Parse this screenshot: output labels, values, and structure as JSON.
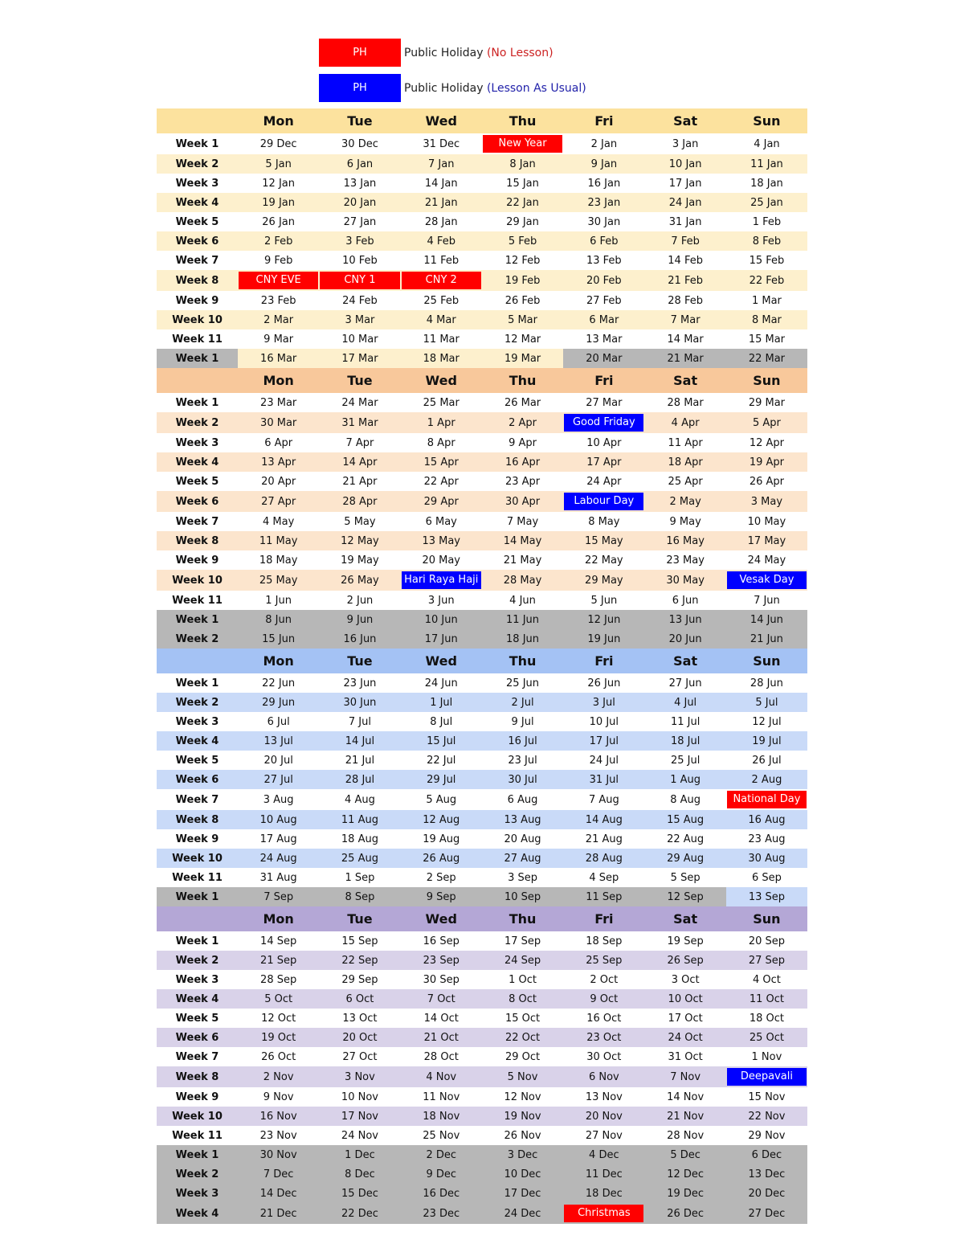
{
  "legend": [
    {
      "box_label": "PH",
      "box_color": "#ff0000",
      "text": "Public Holiday",
      "note": "(No Lesson)",
      "note_color": "#cc2222"
    },
    {
      "box_label": "PH",
      "box_color": "#0000ff",
      "text": "Public Holiday",
      "note": "(Lesson As Usual)",
      "note_color": "#2222aa"
    }
  ],
  "days": [
    "Mon",
    "Tue",
    "Wed",
    "Thu",
    "Fri",
    "Sat",
    "Sun"
  ],
  "colors": {
    "grey": "#b7b7b7",
    "holiday_red": "#ff0000",
    "holiday_blue": "#0000ff"
  },
  "terms": [
    {
      "header_color": "#fce29e",
      "alt_color": "#fdf0cd",
      "rows": [
        {
          "label": "Week 1",
          "cells": [
            "29 Dec",
            "30 Dec",
            "31 Dec",
            {
              "text": "New Year",
              "type": "red"
            },
            "2 Jan",
            "3 Jan",
            "4 Jan"
          ]
        },
        {
          "label": "Week 2",
          "cells": [
            "5 Jan",
            "6 Jan",
            "7 Jan",
            "8 Jan",
            "9 Jan",
            "10 Jan",
            "11 Jan"
          ]
        },
        {
          "label": "Week 3",
          "cells": [
            "12 Jan",
            "13 Jan",
            "14 Jan",
            "15 Jan",
            "16 Jan",
            "17 Jan",
            "18 Jan"
          ]
        },
        {
          "label": "Week 4",
          "cells": [
            "19 Jan",
            "20 Jan",
            "21 Jan",
            "22 Jan",
            "23 Jan",
            "24 Jan",
            "25 Jan"
          ]
        },
        {
          "label": "Week 5",
          "cells": [
            "26 Jan",
            "27 Jan",
            "28 Jan",
            "29 Jan",
            "30 Jan",
            "31 Jan",
            "1 Feb"
          ]
        },
        {
          "label": "Week 6",
          "cells": [
            "2 Feb",
            "3 Feb",
            "4 Feb",
            "5 Feb",
            "6 Feb",
            "7 Feb",
            "8 Feb"
          ]
        },
        {
          "label": "Week 7",
          "cells": [
            "9 Feb",
            "10 Feb",
            "11 Feb",
            "12 Feb",
            "13 Feb",
            "14 Feb",
            "15 Feb"
          ]
        },
        {
          "label": "Week 8",
          "cells": [
            {
              "text": "CNY EVE",
              "type": "red"
            },
            {
              "text": "CNY 1",
              "type": "red"
            },
            {
              "text": "CNY 2",
              "type": "red"
            },
            "19 Feb",
            "20 Feb",
            "21 Feb",
            "22 Feb"
          ]
        },
        {
          "label": "Week 9",
          "cells": [
            "23 Feb",
            "24 Feb",
            "25 Feb",
            "26 Feb",
            "27 Feb",
            "28 Feb",
            "1 Mar"
          ]
        },
        {
          "label": "Week 10",
          "cells": [
            "2 Mar",
            "3 Mar",
            "4 Mar",
            "5 Mar",
            "6 Mar",
            "7 Mar",
            "8 Mar"
          ]
        },
        {
          "label": "Week 11",
          "cells": [
            "9 Mar",
            "10 Mar",
            "11 Mar",
            "12 Mar",
            "13 Mar",
            "14 Mar",
            "15 Mar"
          ]
        },
        {
          "label": "Week 1",
          "grey_label": true,
          "grey_days": [
            4,
            5,
            6
          ],
          "cells": [
            "16 Mar",
            "17 Mar",
            "18 Mar",
            "19 Mar",
            "20 Mar",
            "21 Mar",
            "22 Mar"
          ]
        }
      ]
    },
    {
      "header_color": "#f8c89b",
      "alt_color": "#fce5cd",
      "rows": [
        {
          "label": "Week 1",
          "cells": [
            "23 Mar",
            "24 Mar",
            "25 Mar",
            "26 Mar",
            "27 Mar",
            "28 Mar",
            "29 Mar"
          ]
        },
        {
          "label": "Week 2",
          "cells": [
            "30 Mar",
            "31 Mar",
            "1 Apr",
            "2 Apr",
            {
              "text": "Good Friday",
              "type": "blue"
            },
            "4 Apr",
            "5 Apr"
          ]
        },
        {
          "label": "Week 3",
          "cells": [
            "6 Apr",
            "7 Apr",
            "8 Apr",
            "9 Apr",
            "10 Apr",
            "11 Apr",
            "12 Apr"
          ]
        },
        {
          "label": "Week 4",
          "cells": [
            "13 Apr",
            "14 Apr",
            "15 Apr",
            "16 Apr",
            "17 Apr",
            "18 Apr",
            "19 Apr"
          ]
        },
        {
          "label": "Week 5",
          "cells": [
            "20 Apr",
            "21 Apr",
            "22 Apr",
            "23 Apr",
            "24 Apr",
            "25 Apr",
            "26 Apr"
          ]
        },
        {
          "label": "Week 6",
          "cells": [
            "27 Apr",
            "28 Apr",
            "29 Apr",
            "30 Apr",
            {
              "text": "Labour Day",
              "type": "blue"
            },
            "2 May",
            "3 May"
          ]
        },
        {
          "label": "Week 7",
          "cells": [
            "4 May",
            "5 May",
            "6 May",
            "7 May",
            "8 May",
            "9 May",
            "10 May"
          ]
        },
        {
          "label": "Week 8",
          "cells": [
            "11 May",
            "12 May",
            "13 May",
            "14 May",
            "15 May",
            "16 May",
            "17 May"
          ]
        },
        {
          "label": "Week 9",
          "cells": [
            "18 May",
            "19 May",
            "20 May",
            "21 May",
            "22 May",
            "23 May",
            "24 May"
          ]
        },
        {
          "label": "Week 10",
          "cells": [
            "25 May",
            "26 May",
            {
              "text": "Hari Raya Haji",
              "type": "blue"
            },
            "28 May",
            "29 May",
            "30 May",
            {
              "text": "Vesak Day",
              "type": "blue"
            }
          ]
        },
        {
          "label": "Week 11",
          "cells": [
            "1 Jun",
            "2 Jun",
            "3 Jun",
            "4 Jun",
            "5 Jun",
            "6 Jun",
            "7 Jun"
          ]
        },
        {
          "label": "Week 1",
          "grey_label": true,
          "grey_days": [
            0,
            1,
            2,
            3,
            4,
            5,
            6
          ],
          "cells": [
            "8 Jun",
            "9 Jun",
            "10 Jun",
            "11 Jun",
            "12 Jun",
            "13 Jun",
            "14 Jun"
          ]
        },
        {
          "label": "Week 2",
          "grey_label": true,
          "grey_days": [
            0,
            1,
            2,
            3,
            4,
            5,
            6
          ],
          "cells": [
            "15 Jun",
            "16 Jun",
            "17 Jun",
            "18 Jun",
            "19 Jun",
            "20 Jun",
            "21 Jun"
          ]
        }
      ]
    },
    {
      "header_color": "#a4c2f4",
      "alt_color": "#c9daf8",
      "rows": [
        {
          "label": "Week 1",
          "cells": [
            "22 Jun",
            "23 Jun",
            "24 Jun",
            "25 Jun",
            "26 Jun",
            "27 Jun",
            "28 Jun"
          ]
        },
        {
          "label": "Week 2",
          "cells": [
            "29 Jun",
            "30 Jun",
            "1 Jul",
            "2 Jul",
            "3 Jul",
            "4 Jul",
            "5 Jul"
          ]
        },
        {
          "label": "Week 3",
          "cells": [
            "6 Jul",
            "7 Jul",
            "8 Jul",
            "9 Jul",
            "10 Jul",
            "11 Jul",
            "12 Jul"
          ]
        },
        {
          "label": "Week 4",
          "cells": [
            "13 Jul",
            "14 Jul",
            "15 Jul",
            "16 Jul",
            "17 Jul",
            "18 Jul",
            "19 Jul"
          ]
        },
        {
          "label": "Week 5",
          "cells": [
            "20 Jul",
            "21 Jul",
            "22 Jul",
            "23 Jul",
            "24 Jul",
            "25 Jul",
            "26 Jul"
          ]
        },
        {
          "label": "Week 6",
          "cells": [
            "27 Jul",
            "28 Jul",
            "29 Jul",
            "30 Jul",
            "31 Jul",
            "1 Aug",
            "2 Aug"
          ]
        },
        {
          "label": "Week 7",
          "cells": [
            "3 Aug",
            "4 Aug",
            "5 Aug",
            "6 Aug",
            "7 Aug",
            "8 Aug",
            {
              "text": "National Day",
              "type": "red"
            }
          ]
        },
        {
          "label": "Week 8",
          "cells": [
            "10 Aug",
            "11 Aug",
            "12 Aug",
            "13 Aug",
            "14 Aug",
            "15 Aug",
            "16 Aug"
          ]
        },
        {
          "label": "Week 9",
          "cells": [
            "17 Aug",
            "18 Aug",
            "19 Aug",
            "20 Aug",
            "21 Aug",
            "22 Aug",
            "23 Aug"
          ]
        },
        {
          "label": "Week 10",
          "cells": [
            "24 Aug",
            "25 Aug",
            "26 Aug",
            "27 Aug",
            "28 Aug",
            "29 Aug",
            "30 Aug"
          ]
        },
        {
          "label": "Week 11",
          "cells": [
            "31 Aug",
            "1 Sep",
            "2 Sep",
            "3 Sep",
            "4 Sep",
            "5 Sep",
            "6 Sep"
          ]
        },
        {
          "label": "Week 1",
          "grey_label": true,
          "grey_days": [
            0,
            1,
            2,
            3,
            4,
            5
          ],
          "cells": [
            "7 Sep",
            "8 Sep",
            "9 Sep",
            "10 Sep",
            "11 Sep",
            "12 Sep",
            "13 Sep"
          ]
        }
      ]
    },
    {
      "header_color": "#b4a7d6",
      "alt_color": "#d9d2e9",
      "rows": [
        {
          "label": "Week 1",
          "cells": [
            "14 Sep",
            "15 Sep",
            "16 Sep",
            "17 Sep",
            "18 Sep",
            "19 Sep",
            "20 Sep"
          ]
        },
        {
          "label": "Week 2",
          "cells": [
            "21 Sep",
            "22 Sep",
            "23 Sep",
            "24 Sep",
            "25 Sep",
            "26 Sep",
            "27 Sep"
          ]
        },
        {
          "label": "Week 3",
          "cells": [
            "28 Sep",
            "29 Sep",
            "30 Sep",
            "1 Oct",
            "2 Oct",
            "3 Oct",
            "4 Oct"
          ]
        },
        {
          "label": "Week 4",
          "cells": [
            "5 Oct",
            "6 Oct",
            "7 Oct",
            "8 Oct",
            "9 Oct",
            "10 Oct",
            "11 Oct"
          ]
        },
        {
          "label": "Week 5",
          "cells": [
            "12 Oct",
            "13 Oct",
            "14 Oct",
            "15 Oct",
            "16 Oct",
            "17 Oct",
            "18 Oct"
          ]
        },
        {
          "label": "Week 6",
          "cells": [
            "19 Oct",
            "20 Oct",
            "21 Oct",
            "22 Oct",
            "23 Oct",
            "24 Oct",
            "25 Oct"
          ]
        },
        {
          "label": "Week 7",
          "cells": [
            "26 Oct",
            "27 Oct",
            "28 Oct",
            "29 Oct",
            "30 Oct",
            "31 Oct",
            "1 Nov"
          ]
        },
        {
          "label": "Week 8",
          "cells": [
            "2 Nov",
            "3 Nov",
            "4 Nov",
            "5 Nov",
            "6 Nov",
            "7 Nov",
            {
              "text": "Deepavali",
              "type": "blue"
            }
          ]
        },
        {
          "label": "Week 9",
          "cells": [
            "9 Nov",
            "10 Nov",
            "11 Nov",
            "12 Nov",
            "13 Nov",
            "14 Nov",
            "15 Nov"
          ]
        },
        {
          "label": "Week 10",
          "cells": [
            "16 Nov",
            "17 Nov",
            "18 Nov",
            "19 Nov",
            "20 Nov",
            "21 Nov",
            "22 Nov"
          ]
        },
        {
          "label": "Week 11",
          "cells": [
            "23 Nov",
            "24 Nov",
            "25 Nov",
            "26 Nov",
            "27 Nov",
            "28 Nov",
            "29 Nov"
          ]
        },
        {
          "label": "Week 1",
          "grey_label": true,
          "grey_days": [
            0,
            1,
            2,
            3,
            4,
            5,
            6
          ],
          "cells": [
            "30 Nov",
            "1 Dec",
            "2 Dec",
            "3 Dec",
            "4 Dec",
            "5 Dec",
            "6 Dec"
          ]
        },
        {
          "label": "Week 2",
          "grey_label": true,
          "grey_days": [
            0,
            1,
            2,
            3,
            4,
            5,
            6
          ],
          "cells": [
            "7 Dec",
            "8 Dec",
            "9 Dec",
            "10 Dec",
            "11 Dec",
            "12 Dec",
            "13 Dec"
          ]
        },
        {
          "label": "Week 3",
          "grey_label": true,
          "grey_days": [
            0,
            1,
            2,
            3,
            4,
            5,
            6
          ],
          "cells": [
            "14 Dec",
            "15 Dec",
            "16 Dec",
            "17 Dec",
            "18 Dec",
            "19 Dec",
            "20 Dec"
          ]
        },
        {
          "label": "Week 4",
          "grey_label": true,
          "grey_days": [
            0,
            1,
            2,
            3,
            4,
            5,
            6
          ],
          "cells": [
            "21 Dec",
            "22 Dec",
            "23 Dec",
            "24 Dec",
            {
              "text": "Christmas",
              "type": "red"
            },
            "26 Dec",
            "27 Dec"
          ]
        }
      ]
    }
  ]
}
